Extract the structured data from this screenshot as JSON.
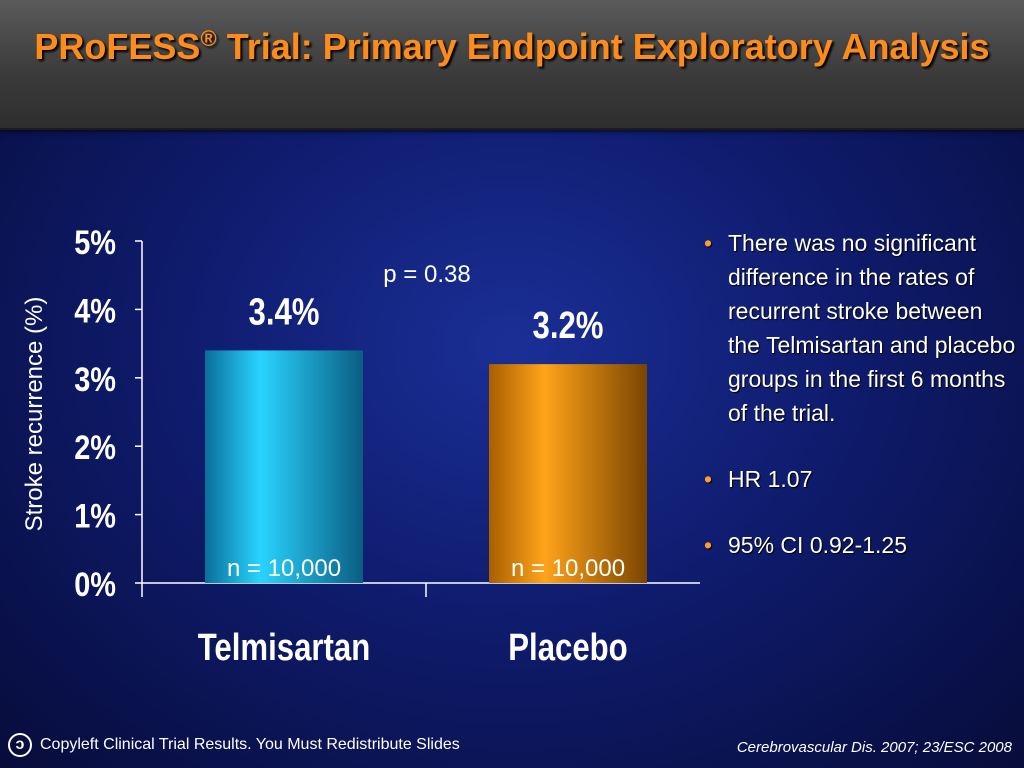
{
  "header": {
    "title_brand": "PRoFESS",
    "title_reg": "®",
    "title_rest": "Trial: Primary Endpoint Exploratory Analysis"
  },
  "chart_data": {
    "type": "bar",
    "categories": [
      "Telmisartan",
      "Placebo"
    ],
    "values": [
      3.4,
      3.2
    ],
    "value_labels": [
      "3.4%",
      "3.2%"
    ],
    "n_labels": [
      "n = 10,000",
      "n = 10,000"
    ],
    "colors": [
      "#1fc8f0",
      "#ff9a00"
    ],
    "ylabel": "Stroke recurrence (%)",
    "ylim": [
      0,
      5
    ],
    "yticks": [
      "0%",
      "1%",
      "2%",
      "3%",
      "4%",
      "5%"
    ],
    "annotation": "p = 0.38"
  },
  "bullets": [
    "There was no significant difference in the rates of recurrent stroke between the Telmisartan and placebo groups in the first 6 months of the trial.",
    "HR 1.07",
    "95% CI 0.92-1.25"
  ],
  "footer": {
    "left": "Copyleft Clinical Trial Results. You Must Redistribute Slides",
    "right": "Cerebrovascular Dis. 2007; 23/ESC 2008"
  }
}
